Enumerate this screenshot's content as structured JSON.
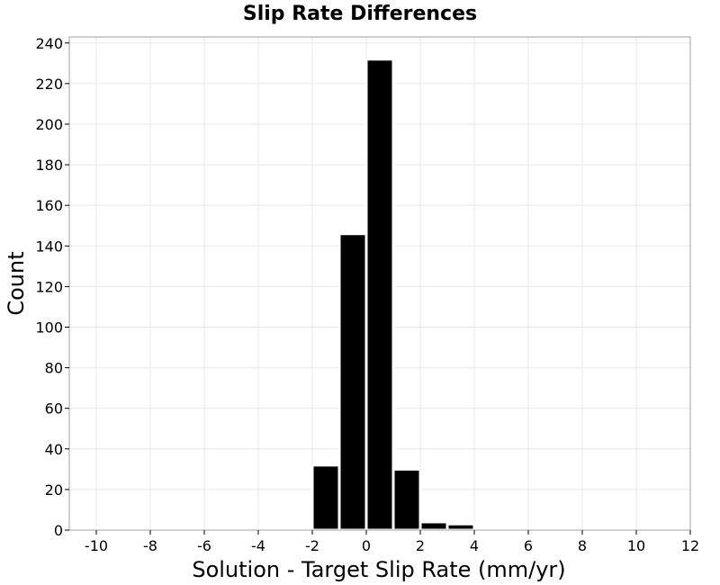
{
  "chart_data": {
    "type": "bar",
    "title": "Slip Rate Differences",
    "xlabel": "Solution - Target Slip Rate (mm/yr)",
    "ylabel": "Count",
    "xlim": [
      -11,
      12
    ],
    "ylim": [
      0,
      243
    ],
    "xticks": [
      -10,
      -8,
      -6,
      -4,
      -2,
      0,
      2,
      4,
      6,
      8,
      10,
      12
    ],
    "yticks": [
      0,
      20,
      40,
      60,
      80,
      100,
      120,
      140,
      160,
      180,
      200,
      220,
      240
    ],
    "bin_width": 1,
    "grid": true,
    "bins": [
      {
        "center": -9.5,
        "value": 1
      },
      {
        "center": -4.5,
        "value": 1
      },
      {
        "center": -3.5,
        "value": 1
      },
      {
        "center": -2.5,
        "value": 1
      },
      {
        "center": -1.5,
        "value": 32
      },
      {
        "center": -0.5,
        "value": 146
      },
      {
        "center": 0.5,
        "value": 232
      },
      {
        "center": 1.5,
        "value": 30
      },
      {
        "center": 2.5,
        "value": 4
      },
      {
        "center": 3.5,
        "value": 3
      },
      {
        "center": 4.5,
        "value": 1
      }
    ],
    "colors": {
      "bar": "#000000",
      "bar_edge": "#ffffff",
      "grid": "#e8e8e8",
      "frame": "#a0a0a0"
    }
  }
}
